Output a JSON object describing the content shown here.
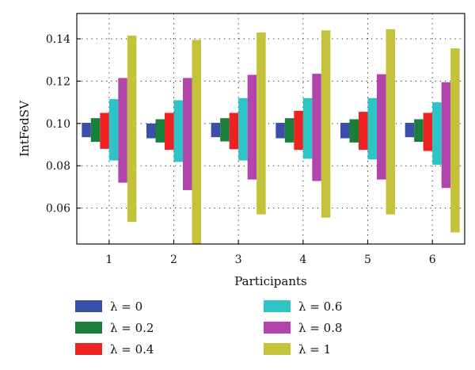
{
  "chart_data": {
    "type": "bar",
    "subtype": "floating-range",
    "xlabel": "Participants",
    "ylabel": "IntFedSV",
    "categories": [
      "1",
      "2",
      "3",
      "4",
      "5",
      "6"
    ],
    "ylim": [
      0.043,
      0.152
    ],
    "yticks": [
      "0.06",
      "0.08",
      "0.10",
      "0.12",
      "0.14"
    ],
    "ytick_values": [
      0.06,
      0.08,
      0.1,
      0.12,
      0.14
    ],
    "grid": true,
    "grid_style": "dotted",
    "legend_position": "bottom",
    "series": [
      {
        "name": "λ = 0",
        "color": "#3a4fa8",
        "low": [
          0.0935,
          0.093,
          0.0935,
          0.093,
          0.093,
          0.0935
        ],
        "high": [
          0.1003,
          0.1,
          0.1003,
          0.1003,
          0.1003,
          0.1003
        ]
      },
      {
        "name": "λ = 0.2",
        "color": "#1a7f3b",
        "low": [
          0.0913,
          0.091,
          0.0915,
          0.091,
          0.091,
          0.0913
        ],
        "high": [
          0.1025,
          0.102,
          0.1025,
          0.1025,
          0.102,
          0.102
        ]
      },
      {
        "name": "λ = 0.4",
        "color": "#ee2222",
        "low": [
          0.088,
          0.0875,
          0.0878,
          0.0875,
          0.0875,
          0.087
        ],
        "high": [
          0.105,
          0.105,
          0.105,
          0.106,
          0.1055,
          0.105
        ]
      },
      {
        "name": "λ = 0.6",
        "color": "#2cc4c4",
        "low": [
          0.0825,
          0.0818,
          0.0825,
          0.0833,
          0.083,
          0.0805
        ],
        "high": [
          0.1115,
          0.111,
          0.112,
          0.112,
          0.112,
          0.11
        ]
      },
      {
        "name": "λ = 0.8",
        "color": "#b145ac",
        "low": [
          0.072,
          0.0685,
          0.0735,
          0.0728,
          0.0735,
          0.0695
        ],
        "high": [
          0.1215,
          0.1215,
          0.123,
          0.1235,
          0.1233,
          0.1195
        ]
      },
      {
        "name": "λ = 1",
        "color": "#c4c23a",
        "low": [
          0.0535,
          0.043,
          0.057,
          0.0555,
          0.057,
          0.0485
        ],
        "high": [
          0.1415,
          0.1395,
          0.143,
          0.144,
          0.1445,
          0.1355
        ]
      }
    ]
  }
}
